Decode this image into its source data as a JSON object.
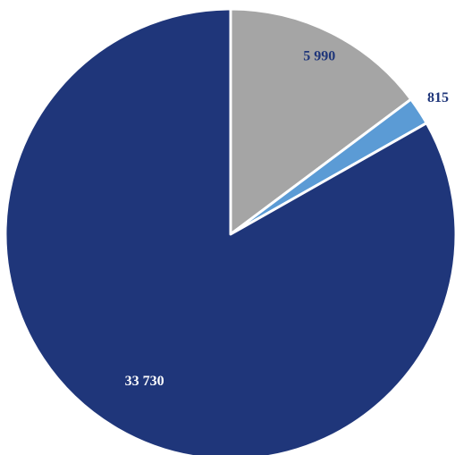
{
  "chart_data": {
    "type": "pie",
    "values": [
      5990,
      815,
      33730
    ],
    "value_labels": [
      "5 990",
      "815",
      "33 730"
    ],
    "colors": [
      "#a5a5a5",
      "#5b9bd5",
      "#1f367a"
    ]
  }
}
